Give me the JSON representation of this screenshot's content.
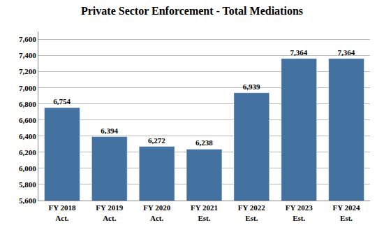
{
  "chart_data": {
    "type": "bar",
    "title": "Private Sector Enforcement - Total Mediations",
    "categories": [
      "FY 2018\nAct.",
      "FY 2019\nAct.",
      "FY 2020\nAct.",
      "FY 2021\nEst.",
      "FY 2022\nEst.",
      "FY 2023\nEst.",
      "FY 2024\nEst."
    ],
    "values": [
      6754,
      6394,
      6272,
      6238,
      6939,
      7364,
      7364
    ],
    "value_labels": [
      "6,754",
      "6,394",
      "6,272",
      "6,238",
      "6,939",
      "7,364",
      "7,364"
    ],
    "data_labels": true,
    "color": "#4472A0",
    "ylim": [
      5600,
      7700
    ],
    "yticks": [
      {
        "value": 5600,
        "label": "5,600"
      },
      {
        "value": 5800,
        "label": "5,800"
      },
      {
        "value": 6000,
        "label": "6,000"
      },
      {
        "value": 6200,
        "label": "6,200"
      },
      {
        "value": 6400,
        "label": "6,400"
      },
      {
        "value": 6600,
        "label": "6,600"
      },
      {
        "value": 6800,
        "label": "6,800"
      },
      {
        "value": 7000,
        "label": "7,000"
      },
      {
        "value": 7200,
        "label": "7,200"
      },
      {
        "value": 7400,
        "label": "7,400"
      },
      {
        "value": 7600,
        "label": "7,600"
      }
    ],
    "grid": true
  }
}
